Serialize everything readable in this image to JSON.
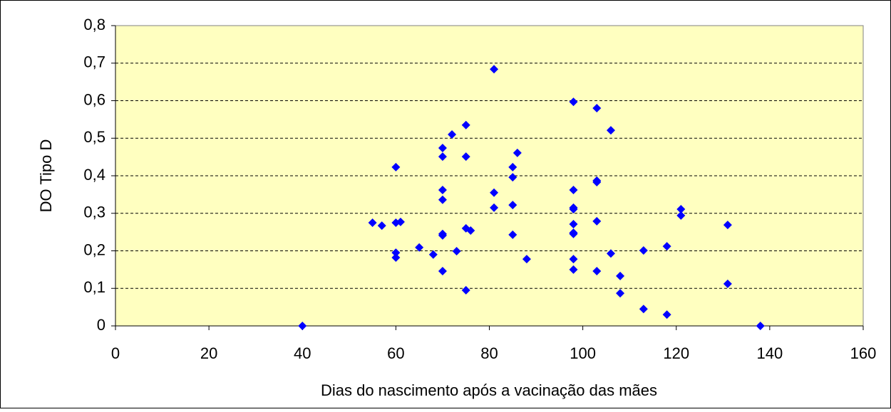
{
  "chart_data": {
    "type": "scatter",
    "x_label": "Dias do nascimento após a vacinação das mães",
    "y_label": "DO Tipo D",
    "color": "#0000ff",
    "grid": true,
    "xlim": [
      0,
      160
    ],
    "xticks": [
      0,
      20,
      40,
      60,
      80,
      100,
      120,
      140,
      160
    ],
    "ylim": [
      0,
      0.8
    ],
    "yticks": [
      0,
      {
        "value": 0.1,
        "label": "0,1"
      },
      {
        "value": 0.2,
        "label": "0,2"
      },
      {
        "value": 0.3,
        "label": "0,3"
      },
      {
        "value": 0.4,
        "label": "0,4"
      },
      {
        "value": 0.5,
        "label": "0,5"
      },
      {
        "value": 0.6,
        "label": "0,6"
      },
      {
        "value": 0.7,
        "label": "0,7"
      },
      {
        "value": 0.8,
        "label": "0,8"
      }
    ],
    "x": [
      40,
      55,
      57,
      61,
      60,
      60,
      60,
      60,
      65,
      68,
      70,
      70,
      70,
      70,
      70,
      70,
      70,
      72,
      73,
      75,
      75,
      75,
      75,
      76,
      81,
      81,
      81,
      85,
      85,
      85,
      85,
      86,
      88,
      98,
      98,
      98,
      98,
      98,
      98,
      98,
      98,
      98,
      103,
      103,
      103,
      103,
      103,
      106,
      106,
      108,
      108,
      113,
      113,
      118,
      118,
      121,
      121,
      131,
      131,
      138
    ],
    "values": [
      0,
      0.275,
      0.267,
      0.277,
      0.423,
      0.275,
      0.195,
      0.182,
      0.209,
      0.19,
      0.241,
      0.474,
      0.451,
      0.362,
      0.336,
      0.245,
      0.146,
      0.51,
      0.199,
      0.535,
      0.451,
      0.26,
      0.095,
      0.254,
      0.684,
      0.355,
      0.315,
      0.423,
      0.396,
      0.322,
      0.243,
      0.461,
      0.178,
      0.597,
      0.362,
      0.315,
      0.311,
      0.271,
      0.248,
      0.245,
      0.178,
      0.15,
      0.58,
      0.387,
      0.383,
      0.279,
      0.146,
      0.521,
      0.193,
      0.133,
      0.087,
      0.201,
      0.045,
      0.212,
      0.03,
      0.311,
      0.294,
      0.269,
      0.112,
      0
    ]
  }
}
